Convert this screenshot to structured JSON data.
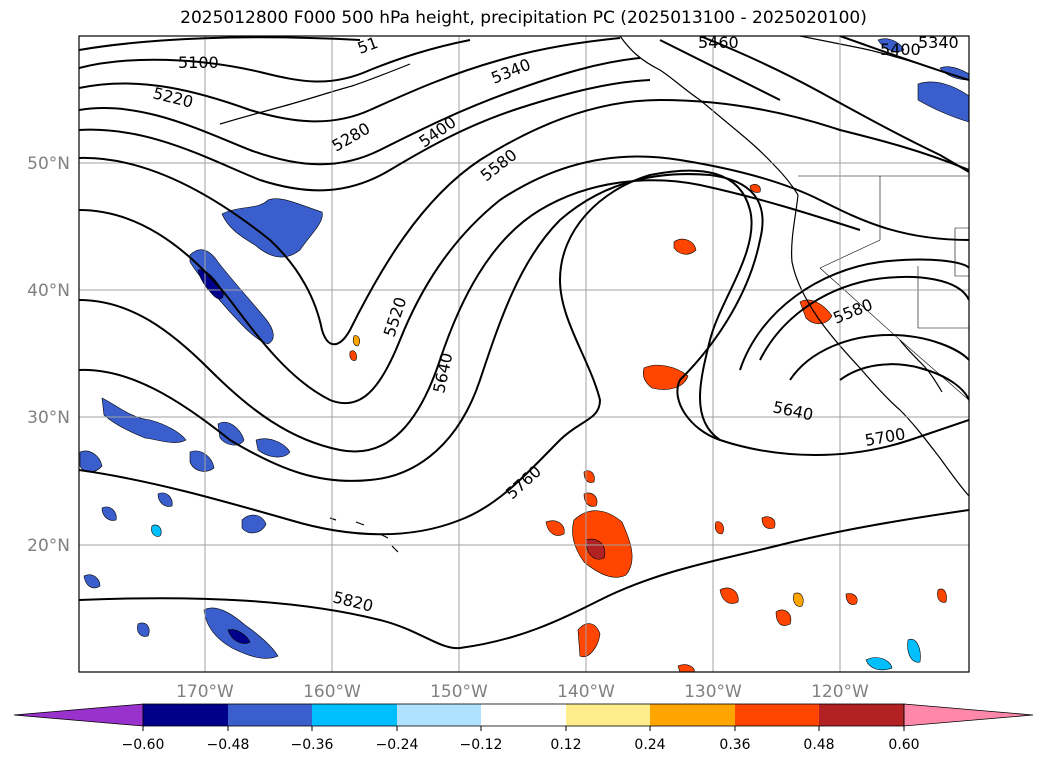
{
  "title": "2025012800 F000 500 hPa height, precipitation PC (2025013100 - 2025020100)",
  "map": {
    "lat_labels": [
      "50°N",
      "40°N",
      "30°N",
      "20°N"
    ],
    "lon_labels": [
      "170°W",
      "160°W",
      "150°W",
      "140°W",
      "130°W",
      "120°W"
    ],
    "contour_labels": [
      "5100",
      "5220",
      "5280",
      "5340",
      "5400",
      "5460",
      "5400",
      "5340",
      "5520",
      "5580",
      "5640",
      "5760",
      "5820",
      "5580",
      "5640",
      "5700",
      "51"
    ]
  },
  "colorbar": {
    "ticks": [
      "−0.60",
      "−0.48",
      "−0.36",
      "−0.24",
      "−0.12",
      "0.12",
      "0.24",
      "0.36",
      "0.48",
      "0.60"
    ],
    "colors": [
      "#9932cc",
      "#00008b",
      "#3a5fcd",
      "#00bfff",
      "#b0e2ff",
      "#ffffff",
      "#ffec8b",
      "#ffa500",
      "#ff4500",
      "#b22222",
      "#ff88aa"
    ]
  },
  "colors": {
    "negative_precip": "#3a5fcd",
    "negative_light": "#00bfff",
    "negative_dark": "#00008b",
    "positive_precip": "#ff4500",
    "positive_light": "#ffa500",
    "positive_pale": "#ffec8b",
    "positive_dark": "#b22222"
  }
}
